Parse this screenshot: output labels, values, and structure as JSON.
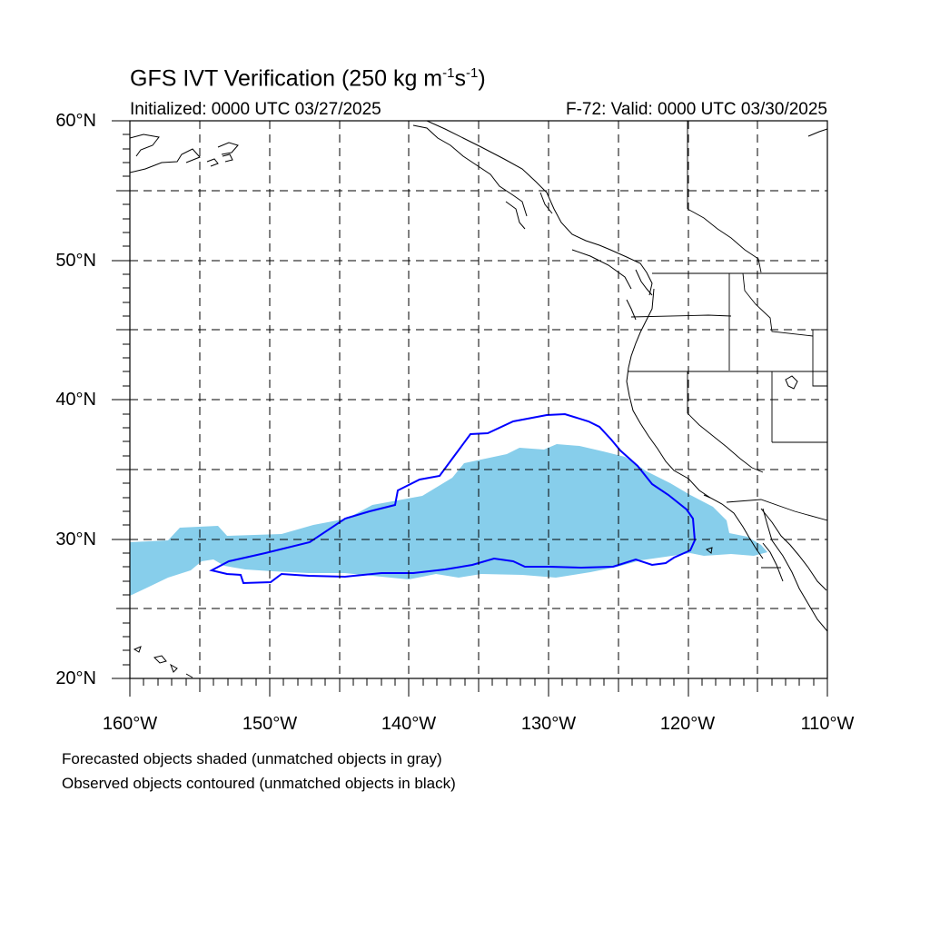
{
  "title": {
    "prefix": "GFS IVT Verification (250 kg m",
    "exp1": "-1",
    "mid": "s",
    "exp2": "-1",
    "suffix": ")"
  },
  "initialized": "Initialized: 0000 UTC 03/27/2025",
  "valid": "F-72: Valid: 0000 UTC 03/30/2025",
  "lat_labels": [
    "60°N",
    "50°N",
    "40°N",
    "30°N",
    "20°N"
  ],
  "lon_labels": [
    "160°W",
    "150°W",
    "140°W",
    "130°W",
    "120°W",
    "110°W"
  ],
  "footnote_1": "Forecasted objects shaded (unmatched objects in gray)",
  "footnote_2": "Observed objects contoured (unmatched objects in black)",
  "map": {
    "lon_range": [
      -160,
      -110
    ],
    "lat_range": [
      20,
      60
    ],
    "grid_step_deg": 5,
    "forecast_fill_color": "#87ceeb",
    "observed_contour_color": "#0000ff",
    "gridline_style": "dashed"
  }
}
